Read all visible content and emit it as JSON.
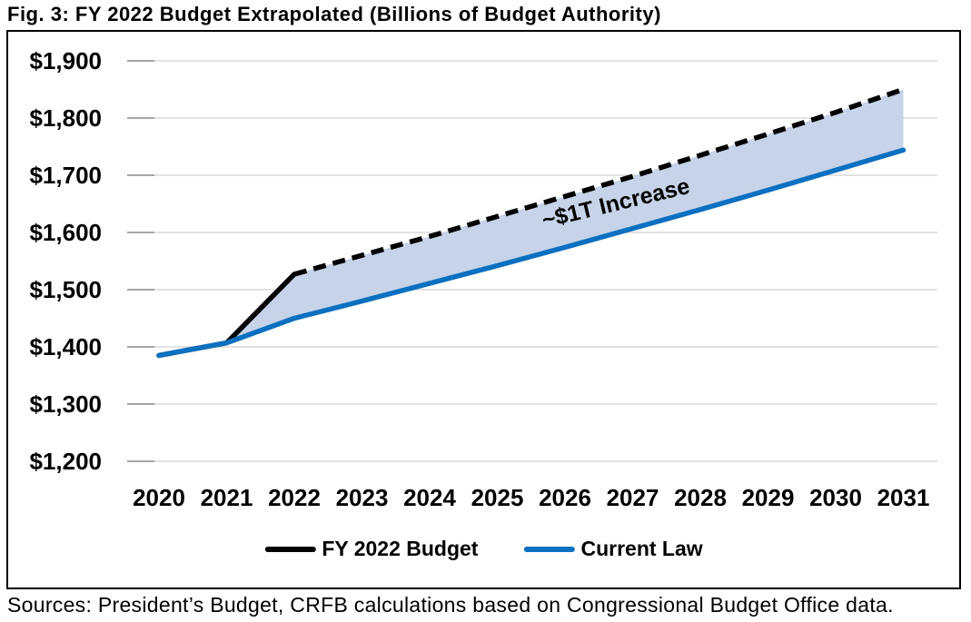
{
  "title": "Fig. 3: FY 2022 Budget Extrapolated (Billions of Budget Authority)",
  "source_note": "Sources: President’s Budget, CRFB calculations based on Congressional Budget Office data.",
  "legend": {
    "items": [
      {
        "label": "FY 2022 Budget",
        "color": "#000000"
      },
      {
        "label": "Current Law",
        "color": "#0C70C0"
      }
    ]
  },
  "chart_data": {
    "type": "line",
    "title": "Fig. 3: FY 2022 Budget Extrapolated (Billions of Budget Authority)",
    "units": "Billions of Budget Authority",
    "annotation": "~$1T Increase",
    "x": [
      2020,
      2021,
      2022,
      2023,
      2024,
      2025,
      2026,
      2027,
      2028,
      2029,
      2030,
      2031
    ],
    "x_labels": [
      "2020",
      "2021",
      "2022",
      "2023",
      "2024",
      "2025",
      "2026",
      "2027",
      "2028",
      "2029",
      "2030",
      "2031"
    ],
    "ylim": [
      1200,
      1900
    ],
    "ytick_step": 100,
    "yticks": [
      {
        "value": 1900,
        "label": "$1,900"
      },
      {
        "value": 1800,
        "label": "$1,800"
      },
      {
        "value": 1700,
        "label": "$1,700"
      },
      {
        "value": 1600,
        "label": "$1,600"
      },
      {
        "value": 1500,
        "label": "$1,500"
      },
      {
        "value": 1400,
        "label": "$1,400"
      },
      {
        "value": 1300,
        "label": "$1,300"
      },
      {
        "value": 1200,
        "label": "$1,200"
      }
    ],
    "grid": "horizontal",
    "legend_position": "bottom",
    "series": [
      {
        "name": "FY 2022 Budget",
        "style": "solid",
        "color": "#000000",
        "x": [
          2020,
          2021,
          2022
        ],
        "values": [
          1385,
          1407,
          1527
        ]
      },
      {
        "name": "FY 2022 Budget (extrapolated)",
        "style": "dashed",
        "color": "#000000",
        "x": [
          2022,
          2023,
          2024,
          2025,
          2026,
          2027,
          2028,
          2029,
          2030,
          2031
        ],
        "values": [
          1527,
          1560,
          1593,
          1628,
          1663,
          1698,
          1735,
          1772,
          1810,
          1850
        ]
      },
      {
        "name": "Current Law",
        "style": "solid",
        "color": "#0C70C0",
        "x": [
          2020,
          2021,
          2022,
          2023,
          2024,
          2025,
          2026,
          2027,
          2028,
          2029,
          2030,
          2031
        ],
        "values": [
          1385,
          1407,
          1450,
          1480,
          1511,
          1542,
          1574,
          1607,
          1640,
          1674,
          1709,
          1744
        ]
      }
    ],
    "area_between": {
      "upper": "FY 2022 Budget (extrapolated)",
      "lower": "Current Law",
      "from": 2021,
      "fill": "#C6D3E8"
    },
    "colors": {
      "gridline": "#D9D9D9",
      "tick": "#A6A6A6",
      "plot_border": "#000000",
      "background": "#FFFFFF"
    }
  }
}
